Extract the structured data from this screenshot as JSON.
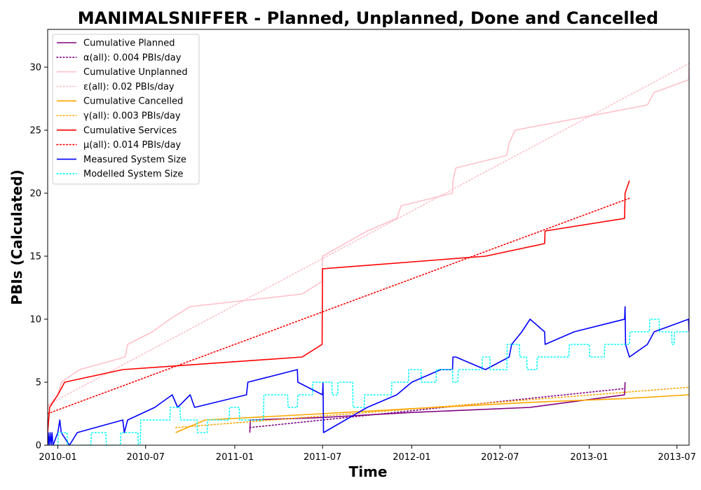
{
  "chart_data": {
    "type": "line",
    "title": "MANIMALSNIFFER - Planned, Unplanned, Done  and Cancelled",
    "xlabel": "Time",
    "ylabel": "PBIs (Calculated)",
    "xlim": [
      "2009-12-11",
      "2013-07-26"
    ],
    "ylim": [
      0,
      33
    ],
    "x_ticks": [
      "2010-01",
      "2010-07",
      "2011-01",
      "2011-07",
      "2012-01",
      "2012-07",
      "2013-01",
      "2013-07"
    ],
    "y_ticks": [
      0,
      5,
      10,
      15,
      20,
      25,
      30
    ],
    "grid": false,
    "legend_position": "top-left",
    "series": [
      {
        "name": "Cumulative Planned",
        "color": "#800080",
        "style": "solid",
        "points": [
          [
            "2011-02-01",
            1
          ],
          [
            "2011-02-02",
            2
          ],
          [
            "2011-07-01",
            2.2
          ],
          [
            "2012-01-01",
            2.6
          ],
          [
            "2012-09-01",
            3
          ],
          [
            "2013-03-15",
            4
          ],
          [
            "2013-03-16",
            5
          ]
        ]
      },
      {
        "name": "α(all): 0.004 PBIs/day",
        "color": "#800080",
        "style": "dotted",
        "points": [
          [
            "2011-02-01",
            1.4
          ],
          [
            "2013-03-16",
            4.5
          ]
        ]
      },
      {
        "name": "Cumulative Unplanned",
        "color": "#ffc0cb",
        "style": "solid",
        "points": [
          [
            "2009-12-11",
            3
          ],
          [
            "2010-01-01",
            4
          ],
          [
            "2010-01-08",
            5
          ],
          [
            "2010-02-15",
            6
          ],
          [
            "2010-05-20",
            7
          ],
          [
            "2010-05-25",
            8
          ],
          [
            "2010-07-15",
            9
          ],
          [
            "2010-08-20",
            10
          ],
          [
            "2010-10-01",
            11
          ],
          [
            "2011-05-20",
            12
          ],
          [
            "2011-06-30",
            13
          ],
          [
            "2011-07-01",
            15
          ],
          [
            "2011-10-01",
            17
          ],
          [
            "2011-12-01",
            18
          ],
          [
            "2011-12-10",
            19
          ],
          [
            "2012-03-25",
            20
          ],
          [
            "2012-03-26",
            21
          ],
          [
            "2012-04-01",
            22
          ],
          [
            "2012-07-15",
            23
          ],
          [
            "2012-07-20",
            24
          ],
          [
            "2012-08-01",
            25
          ],
          [
            "2013-05-01",
            27
          ],
          [
            "2013-05-15",
            28
          ],
          [
            "2013-07-25",
            29
          ],
          [
            "2013-07-26",
            30
          ]
        ]
      },
      {
        "name": "ε(all): 0.02 PBIs/day",
        "color": "#ffc0cb",
        "style": "dotted",
        "points": [
          [
            "2009-12-11",
            3.2
          ],
          [
            "2013-07-26",
            30.3
          ]
        ]
      },
      {
        "name": "Cumulative Cancelled",
        "color": "#ffa500",
        "style": "solid",
        "points": [
          [
            "2010-09-01",
            1
          ],
          [
            "2010-11-01",
            2
          ],
          [
            "2011-07-01",
            2.5
          ],
          [
            "2012-01-01",
            2.9
          ],
          [
            "2012-09-01",
            3.4
          ],
          [
            "2013-03-15",
            3.7
          ],
          [
            "2013-07-26",
            4
          ]
        ]
      },
      {
        "name": "γ(all): 0.003 PBIs/day",
        "color": "#ffa500",
        "style": "dotted",
        "points": [
          [
            "2010-09-01",
            1.4
          ],
          [
            "2013-07-26",
            4.6
          ]
        ]
      },
      {
        "name": "Cumulative Services",
        "color": "#ff0000",
        "style": "solid",
        "points": [
          [
            "2009-12-11",
            1
          ],
          [
            "2009-12-15",
            3
          ],
          [
            "2010-01-01",
            4
          ],
          [
            "2010-01-15",
            5
          ],
          [
            "2010-05-15",
            6
          ],
          [
            "2011-05-20",
            7
          ],
          [
            "2011-06-30",
            8
          ],
          [
            "2011-07-01",
            14
          ],
          [
            "2012-06-01",
            15
          ],
          [
            "2012-10-01",
            16
          ],
          [
            "2012-10-02",
            17
          ],
          [
            "2013-03-15",
            18
          ],
          [
            "2013-03-16",
            20
          ],
          [
            "2013-03-25",
            21
          ]
        ]
      },
      {
        "name": "μ(all): 0.014 PBIs/day",
        "color": "#ff0000",
        "style": "dotted",
        "points": [
          [
            "2009-12-11",
            2.5
          ],
          [
            "2013-03-25",
            19.6
          ]
        ]
      },
      {
        "name": "Measured System Size",
        "color": "#0000ff",
        "style": "solid",
        "points": [
          [
            "2009-12-11",
            0
          ],
          [
            "2009-12-12",
            1
          ],
          [
            "2009-12-14",
            0
          ],
          [
            "2009-12-16",
            1
          ],
          [
            "2009-12-18",
            0
          ],
          [
            "2009-12-20",
            1
          ],
          [
            "2009-12-22",
            0
          ],
          [
            "2010-01-01",
            1
          ],
          [
            "2010-01-05",
            2
          ],
          [
            "2010-01-08",
            1
          ],
          [
            "2010-01-25",
            0
          ],
          [
            "2010-02-10",
            1
          ],
          [
            "2010-05-15",
            2
          ],
          [
            "2010-05-18",
            1
          ],
          [
            "2010-05-25",
            2
          ],
          [
            "2010-07-20",
            3
          ],
          [
            "2010-08-25",
            4
          ],
          [
            "2010-09-05",
            3
          ],
          [
            "2010-10-01",
            4
          ],
          [
            "2010-10-10",
            3
          ],
          [
            "2011-01-25",
            4
          ],
          [
            "2011-01-28",
            5
          ],
          [
            "2011-05-10",
            6
          ],
          [
            "2011-05-11",
            5
          ],
          [
            "2011-07-01",
            4
          ],
          [
            "2011-07-02",
            5
          ],
          [
            "2011-07-03",
            1
          ],
          [
            "2011-10-01",
            3
          ],
          [
            "2011-12-01",
            4
          ],
          [
            "2012-01-01",
            5
          ],
          [
            "2012-03-01",
            6
          ],
          [
            "2012-03-25",
            6
          ],
          [
            "2012-03-26",
            7
          ],
          [
            "2012-04-01",
            7
          ],
          [
            "2012-06-01",
            6
          ],
          [
            "2012-07-20",
            7
          ],
          [
            "2012-07-25",
            8
          ],
          [
            "2012-08-15",
            9
          ],
          [
            "2012-09-01",
            10
          ],
          [
            "2012-10-01",
            9
          ],
          [
            "2012-10-02",
            8
          ],
          [
            "2012-12-01",
            9
          ],
          [
            "2013-03-15",
            10
          ],
          [
            "2013-03-16",
            11
          ],
          [
            "2013-03-17",
            8
          ],
          [
            "2013-03-25",
            7
          ],
          [
            "2013-05-01",
            8
          ],
          [
            "2013-05-15",
            9
          ],
          [
            "2013-07-25",
            10
          ],
          [
            "2013-07-26",
            9
          ]
        ]
      },
      {
        "name": "Modelled System Size",
        "color": "#00ffff",
        "style": "dotted",
        "points": [
          [
            "2009-12-11",
            0
          ],
          [
            "2010-01-01",
            0
          ],
          [
            "2010-01-02",
            1
          ],
          [
            "2010-01-20",
            1
          ],
          [
            "2010-01-21",
            0
          ],
          [
            "2010-03-10",
            0
          ],
          [
            "2010-03-11",
            1
          ],
          [
            "2010-04-10",
            1
          ],
          [
            "2010-04-11",
            0
          ],
          [
            "2010-05-10",
            0
          ],
          [
            "2010-05-11",
            1
          ],
          [
            "2010-06-15",
            1
          ],
          [
            "2010-06-16",
            0
          ],
          [
            "2010-06-20",
            0
          ],
          [
            "2010-06-21",
            2
          ],
          [
            "2010-08-20",
            2
          ],
          [
            "2010-08-21",
            3
          ],
          [
            "2010-09-10",
            3
          ],
          [
            "2010-09-11",
            2
          ],
          [
            "2010-10-15",
            2
          ],
          [
            "2010-10-16",
            1
          ],
          [
            "2010-11-05",
            1
          ],
          [
            "2010-11-06",
            2
          ],
          [
            "2010-12-20",
            2
          ],
          [
            "2010-12-21",
            3
          ],
          [
            "2011-01-10",
            3
          ],
          [
            "2011-01-11",
            2
          ],
          [
            "2011-03-01",
            2
          ],
          [
            "2011-03-02",
            4
          ],
          [
            "2011-04-20",
            4
          ],
          [
            "2011-04-21",
            3
          ],
          [
            "2011-05-10",
            3
          ],
          [
            "2011-05-11",
            4
          ],
          [
            "2011-06-10",
            4
          ],
          [
            "2011-06-11",
            5
          ],
          [
            "2011-07-20",
            5
          ],
          [
            "2011-07-21",
            4
          ],
          [
            "2011-08-01",
            4
          ],
          [
            "2011-08-02",
            5
          ],
          [
            "2011-09-01",
            5
          ],
          [
            "2011-09-02",
            3
          ],
          [
            "2011-09-25",
            3
          ],
          [
            "2011-09-26",
            4
          ],
          [
            "2011-11-20",
            4
          ],
          [
            "2011-11-21",
            5
          ],
          [
            "2011-12-25",
            5
          ],
          [
            "2011-12-26",
            6
          ],
          [
            "2012-01-20",
            6
          ],
          [
            "2012-01-21",
            5
          ],
          [
            "2012-02-20",
            5
          ],
          [
            "2012-02-21",
            6
          ],
          [
            "2012-03-25",
            6
          ],
          [
            "2012-03-26",
            5
          ],
          [
            "2012-04-05",
            5
          ],
          [
            "2012-04-06",
            6
          ],
          [
            "2012-05-25",
            6
          ],
          [
            "2012-05-26",
            7
          ],
          [
            "2012-06-10",
            7
          ],
          [
            "2012-06-11",
            6
          ],
          [
            "2012-07-15",
            6
          ],
          [
            "2012-07-16",
            8
          ],
          [
            "2012-08-10",
            8
          ],
          [
            "2012-08-11",
            7
          ],
          [
            "2012-08-25",
            7
          ],
          [
            "2012-08-26",
            6
          ],
          [
            "2012-09-15",
            6
          ],
          [
            "2012-09-16",
            7
          ],
          [
            "2012-11-20",
            7
          ],
          [
            "2012-11-21",
            8
          ],
          [
            "2013-01-01",
            8
          ],
          [
            "2013-01-02",
            7
          ],
          [
            "2013-02-01",
            7
          ],
          [
            "2013-02-02",
            8
          ],
          [
            "2013-03-25",
            8
          ],
          [
            "2013-03-26",
            9
          ],
          [
            "2013-05-05",
            9
          ],
          [
            "2013-05-06",
            10
          ],
          [
            "2013-05-25",
            10
          ],
          [
            "2013-05-26",
            9
          ],
          [
            "2013-06-20",
            9
          ],
          [
            "2013-06-21",
            8
          ],
          [
            "2013-06-25",
            8
          ],
          [
            "2013-06-26",
            9
          ],
          [
            "2013-07-26",
            9
          ]
        ]
      }
    ]
  }
}
